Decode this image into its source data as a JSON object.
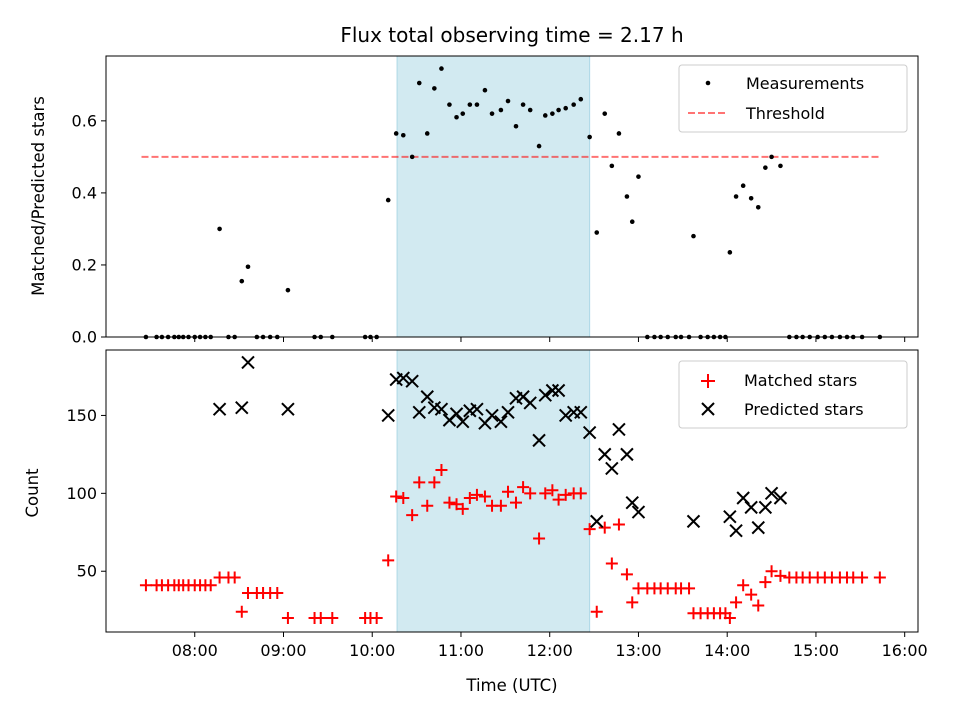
{
  "chart_data": [
    {
      "type": "scatter",
      "title": "Flux total observing time = 2.17 h",
      "xlabel": "",
      "ylabel": "Matched/Predicted stars",
      "xlim": [
        7.0,
        16.15
      ],
      "ylim": [
        0.0,
        0.78
      ],
      "yticks": [
        0.0,
        0.2,
        0.4,
        0.6
      ],
      "ytick_labels": [
        "0.0",
        "0.2",
        "0.4",
        "0.6"
      ],
      "shaded_span": {
        "x": [
          10.28,
          12.45
        ],
        "color": "#add8e6"
      },
      "threshold": {
        "label": "Threshold",
        "y": 0.5,
        "x": [
          7.4,
          15.72
        ],
        "color": "#ff0000"
      },
      "legend": [
        "Measurements",
        "Threshold"
      ],
      "legend_loc": "upper right",
      "series": [
        {
          "name": "Measurements",
          "marker": "dot",
          "color": "#000000",
          "x": [
            7.45,
            7.57,
            7.63,
            7.7,
            7.77,
            7.82,
            7.87,
            7.93,
            8.0,
            8.06,
            8.12,
            8.18,
            8.28,
            8.38,
            8.45,
            8.53,
            8.6,
            8.7,
            8.77,
            8.85,
            8.93,
            9.05,
            9.35,
            9.42,
            9.55,
            9.92,
            9.98,
            10.05,
            10.18,
            10.27,
            10.35,
            10.45,
            10.53,
            10.62,
            10.7,
            10.78,
            10.87,
            10.95,
            11.02,
            11.1,
            11.18,
            11.27,
            11.35,
            11.45,
            11.53,
            11.62,
            11.7,
            11.78,
            11.88,
            11.95,
            12.03,
            12.1,
            12.18,
            12.27,
            12.35,
            12.45,
            12.53,
            12.62,
            12.7,
            12.78,
            12.87,
            12.93,
            13.0,
            13.1,
            13.18,
            13.25,
            13.33,
            13.42,
            13.48,
            13.57,
            13.62,
            13.7,
            13.78,
            13.85,
            13.92,
            13.98,
            14.03,
            14.1,
            14.18,
            14.27,
            14.35,
            14.43,
            14.5,
            14.6,
            14.7,
            14.78,
            14.85,
            14.93,
            15.02,
            15.1,
            15.18,
            15.27,
            15.35,
            15.42,
            15.52,
            15.72
          ],
          "y": [
            0.0,
            0.0,
            0.0,
            0.0,
            0.0,
            0.0,
            0.0,
            0.0,
            0.0,
            0.0,
            0.0,
            0.0,
            0.3,
            0.0,
            0.0,
            0.155,
            0.195,
            0.0,
            0.0,
            0.0,
            0.0,
            0.13,
            0.0,
            0.0,
            0.0,
            0.0,
            0.0,
            0.0,
            0.38,
            0.565,
            0.56,
            0.5,
            0.705,
            0.565,
            0.69,
            0.745,
            0.645,
            0.61,
            0.62,
            0.645,
            0.645,
            0.685,
            0.62,
            0.63,
            0.655,
            0.585,
            0.645,
            0.63,
            0.53,
            0.615,
            0.62,
            0.63,
            0.635,
            0.645,
            0.66,
            0.555,
            0.29,
            0.62,
            0.475,
            0.565,
            0.39,
            0.32,
            0.445,
            0.0,
            0.0,
            0.0,
            0.0,
            0.0,
            0.0,
            0.0,
            0.28,
            0.0,
            0.0,
            0.0,
            0.0,
            0.0,
            0.235,
            0.39,
            0.42,
            0.385,
            0.36,
            0.47,
            0.5,
            0.475,
            0.0,
            0.0,
            0.0,
            0.0,
            0.0,
            0.0,
            0.0,
            0.0,
            0.0,
            0.0,
            0.0,
            0.0
          ]
        }
      ]
    },
    {
      "type": "scatter",
      "title": "",
      "xlabel": "Time (UTC)",
      "ylabel": "Count",
      "xlim": [
        7.0,
        16.15
      ],
      "ylim": [
        11.0,
        192.0
      ],
      "xticks": [
        8,
        9,
        10,
        11,
        12,
        13,
        14,
        15,
        16
      ],
      "xtick_labels": [
        "08:00",
        "09:00",
        "10:00",
        "11:00",
        "12:00",
        "13:00",
        "14:00",
        "15:00",
        "16:00"
      ],
      "yticks": [
        50,
        100,
        150
      ],
      "ytick_labels": [
        "50",
        "100",
        "150"
      ],
      "shaded_span": {
        "x": [
          10.28,
          12.45
        ],
        "color": "#add8e6"
      },
      "legend": [
        "Matched stars",
        "Predicted stars"
      ],
      "legend_loc": "upper right",
      "series": [
        {
          "name": "Matched stars",
          "marker": "plus",
          "color": "#ff0000",
          "x": [
            7.45,
            7.57,
            7.63,
            7.7,
            7.77,
            7.82,
            7.87,
            7.93,
            8.0,
            8.06,
            8.12,
            8.18,
            8.28,
            8.38,
            8.45,
            8.53,
            8.6,
            8.7,
            8.77,
            8.85,
            8.93,
            9.05,
            9.35,
            9.42,
            9.55,
            9.92,
            9.98,
            10.05,
            10.18,
            10.27,
            10.35,
            10.45,
            10.53,
            10.62,
            10.7,
            10.78,
            10.87,
            10.95,
            11.02,
            11.1,
            11.18,
            11.27,
            11.35,
            11.45,
            11.53,
            11.62,
            11.7,
            11.78,
            11.88,
            11.95,
            12.03,
            12.1,
            12.18,
            12.27,
            12.35,
            12.45,
            12.53,
            12.62,
            12.7,
            12.78,
            12.87,
            12.93,
            13.0,
            13.1,
            13.18,
            13.25,
            13.33,
            13.42,
            13.48,
            13.57,
            13.62,
            13.7,
            13.78,
            13.85,
            13.92,
            13.98,
            14.03,
            14.1,
            14.18,
            14.27,
            14.35,
            14.43,
            14.5,
            14.6,
            14.7,
            14.78,
            14.85,
            14.93,
            15.02,
            15.1,
            15.18,
            15.27,
            15.35,
            15.42,
            15.52,
            15.72
          ],
          "y": [
            41,
            41,
            41,
            41,
            41,
            41,
            41,
            41,
            41,
            41,
            41,
            41,
            46,
            46,
            46,
            24,
            36,
            36,
            36,
            36,
            36,
            20,
            20,
            20,
            20,
            20,
            20,
            20,
            57,
            98,
            97,
            86,
            107,
            92,
            107,
            115,
            94,
            93,
            90,
            97,
            99,
            98,
            92,
            92,
            101,
            94,
            104,
            100,
            71,
            100,
            102,
            96,
            99,
            100,
            100,
            77,
            24,
            78,
            55,
            80,
            48,
            30,
            39,
            39,
            39,
            39,
            39,
            39,
            39,
            39,
            23,
            23,
            23,
            23,
            23,
            23,
            20,
            30,
            41,
            35,
            28,
            43,
            50,
            47,
            46,
            46,
            46,
            46,
            46,
            46,
            46,
            46,
            46,
            46,
            46,
            46
          ]
        },
        {
          "name": "Predicted stars",
          "marker": "x",
          "color": "#000000",
          "x": [
            8.28,
            8.53,
            8.6,
            9.05,
            10.18,
            10.27,
            10.35,
            10.45,
            10.53,
            10.62,
            10.7,
            10.78,
            10.87,
            10.95,
            11.02,
            11.1,
            11.18,
            11.27,
            11.35,
            11.45,
            11.53,
            11.62,
            11.7,
            11.78,
            11.88,
            11.95,
            12.03,
            12.1,
            12.18,
            12.27,
            12.35,
            12.45,
            12.53,
            12.62,
            12.7,
            12.78,
            12.87,
            12.93,
            13.0,
            13.62,
            14.03,
            14.1,
            14.18,
            14.27,
            14.35,
            14.43,
            14.5,
            14.6
          ],
          "y": [
            154,
            155,
            184,
            154,
            150,
            173,
            174,
            172,
            152,
            162,
            155,
            154,
            147,
            151,
            146,
            153,
            154,
            145,
            150,
            146,
            152,
            161,
            162,
            158,
            134,
            163,
            166,
            166,
            150,
            152,
            152,
            139,
            82,
            125,
            116,
            141,
            125,
            94,
            88,
            82,
            85,
            76,
            97,
            91,
            78,
            91,
            100,
            97
          ]
        }
      ]
    }
  ]
}
